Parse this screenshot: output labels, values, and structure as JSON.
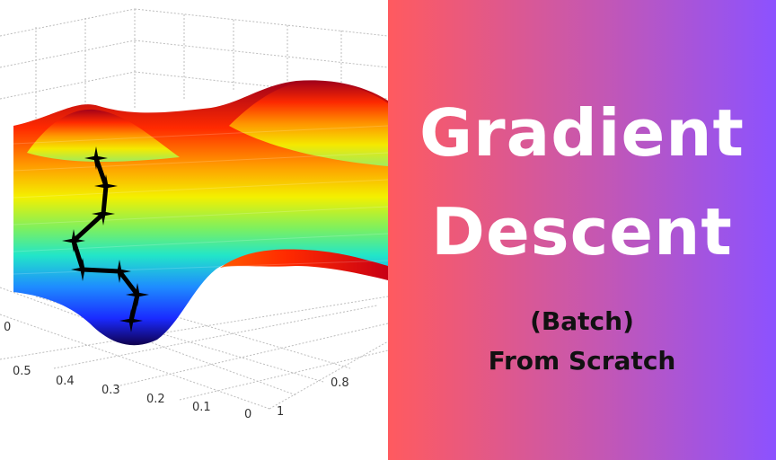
{
  "title": {
    "line1": "Gradient",
    "line2": "Descent"
  },
  "subtitle": {
    "line1": "(Batch)",
    "line2": "From Scratch"
  },
  "plot": {
    "x_ticks": [
      "0.5",
      "0.4",
      "0.3",
      "0.2",
      "0.1",
      "0"
    ],
    "y_ticks": [
      "1",
      "0.8"
    ],
    "z_tick": "0"
  },
  "colors": {
    "gradient_start": "#ff5a5f",
    "gradient_end": "#8c52ff",
    "title_text": "#ffffff",
    "subtitle_text": "#111111",
    "path": "#000000"
  }
}
